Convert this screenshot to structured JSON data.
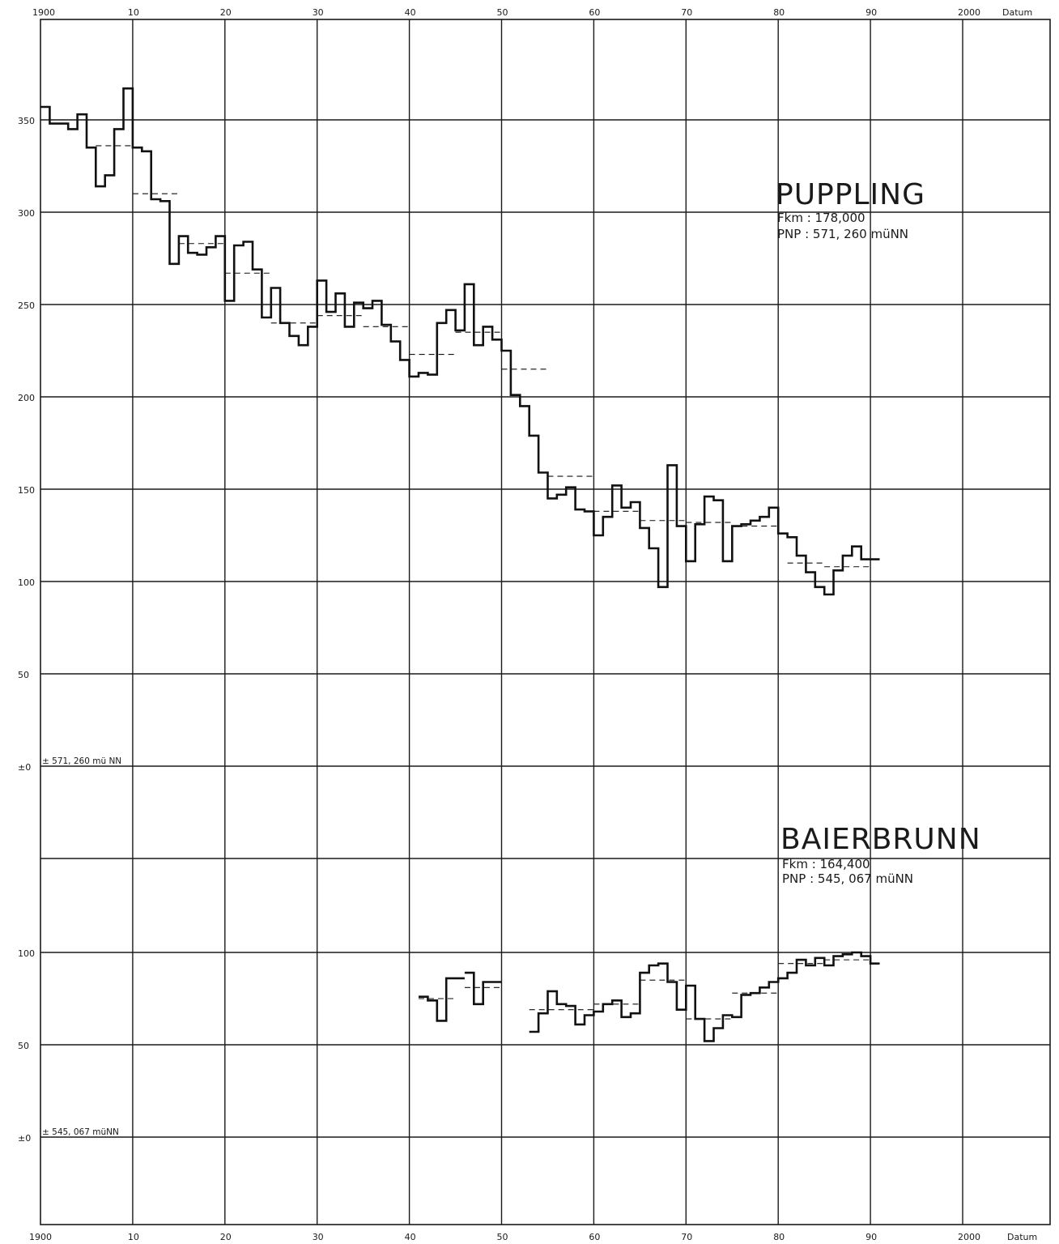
{
  "chart_data": [
    {
      "type": "line",
      "title": "PUPPLING",
      "info": [
        "Fkm : 178,000",
        "PNP : 571, 260 müNN"
      ],
      "reference_label": "± 571, 260 mü NN",
      "x_ticks": [
        "1900",
        "10",
        "20",
        "30",
        "40",
        "50",
        "60",
        "70",
        "80",
        "90",
        "2000"
      ],
      "x_unit": "Datum",
      "y_ticks": [
        "350",
        "300",
        "250",
        "200",
        "150",
        "100",
        "50",
        "±0"
      ],
      "xlim": [
        1900,
        2000
      ],
      "ylim": [
        0,
        350
      ],
      "grid": true,
      "step_series": {
        "x": [
          1900,
          1902,
          1903,
          1904,
          1905,
          1906,
          1907,
          1908,
          1909,
          1910,
          1911,
          1912,
          1913,
          1914,
          1915,
          1916,
          1917,
          1918,
          1919,
          1920,
          1921,
          1922,
          1923,
          1924,
          1925,
          1926,
          1927,
          1928,
          1929,
          1930,
          1931,
          1932,
          1933,
          1934,
          1935,
          1936,
          1937,
          1938,
          1939,
          1940,
          1941,
          1942,
          1943,
          1944,
          1945,
          1946,
          1947,
          1948,
          1949,
          1950,
          1951,
          1952,
          1953,
          1954,
          1955,
          1956,
          1957,
          1958,
          1959,
          1960,
          1961,
          1962,
          1963,
          1964,
          1965,
          1966,
          1967,
          1968,
          1969,
          1970,
          1971,
          1972,
          1973,
          1974,
          1975,
          1976,
          1977,
          1978,
          1979,
          1980,
          1981,
          1982,
          1983,
          1984,
          1985,
          1986,
          1987,
          1988,
          1989,
          1990
        ],
        "y": [
          357,
          348,
          345,
          353,
          335,
          314,
          320,
          345,
          367,
          335,
          333,
          307,
          306,
          272,
          287,
          278,
          277,
          281,
          287,
          252,
          282,
          284,
          269,
          243,
          259,
          240,
          233,
          228,
          238,
          263,
          246,
          256,
          238,
          251,
          248,
          252,
          239,
          230,
          220,
          211,
          213,
          212,
          240,
          247,
          236,
          261,
          228,
          238,
          231,
          225,
          201,
          195,
          179,
          159,
          145,
          147,
          151,
          139,
          138,
          125,
          135,
          152,
          140,
          143,
          129,
          118,
          97,
          163,
          130,
          111,
          131,
          146,
          144,
          111,
          130,
          131,
          133,
          135,
          140,
          126,
          124,
          114,
          105,
          97,
          93,
          106,
          114,
          119,
          112,
          112
        ]
      },
      "period_means": [
        {
          "x": [
            1900,
            1905
          ],
          "y": 350
        },
        {
          "x": [
            1906,
            1910
          ],
          "y": 336
        },
        {
          "x": [
            1910,
            1915
          ],
          "y": 310
        },
        {
          "x": [
            1915,
            1920
          ],
          "y": 283
        },
        {
          "x": [
            1920,
            1925
          ],
          "y": 267
        },
        {
          "x": [
            1925,
            1930
          ],
          "y": 240
        },
        {
          "x": [
            1930,
            1935
          ],
          "y": 244
        },
        {
          "x": [
            1935,
            1940
          ],
          "y": 238
        },
        {
          "x": [
            1940,
            1945
          ],
          "y": 223
        },
        {
          "x": [
            1945,
            1950
          ],
          "y": 235
        },
        {
          "x": [
            1950,
            1955
          ],
          "y": 215
        },
        {
          "x": [
            1955,
            1960
          ],
          "y": 157
        },
        {
          "x": [
            1960,
            1965
          ],
          "y": 138
        },
        {
          "x": [
            1965,
            1970
          ],
          "y": 133
        },
        {
          "x": [
            1970,
            1975
          ],
          "y": 132
        },
        {
          "x": [
            1975,
            1980
          ],
          "y": 130
        },
        {
          "x": [
            1981,
            1985
          ],
          "y": 110
        },
        {
          "x": [
            1985,
            1990
          ],
          "y": 108
        }
      ]
    },
    {
      "type": "line",
      "title": "BAIERBRUNN",
      "info": [
        "Fkm : 164,400",
        "PNP : 545, 067 müNN"
      ],
      "reference_label": "± 545, 067 müNN",
      "x_ticks": [
        "1900",
        "10",
        "20",
        "30",
        "40",
        "50",
        "60",
        "70",
        "80",
        "90",
        "2000"
      ],
      "x_unit": "Datum",
      "y_ticks": [
        "100",
        "50",
        "±0"
      ],
      "xlim": [
        1900,
        2000
      ],
      "ylim": [
        0,
        100
      ],
      "grid": true,
      "step_series": [
        {
          "x": [
            1941,
            1942,
            1943,
            1944,
            1945
          ],
          "y": [
            76,
            74,
            63,
            86,
            86
          ]
        },
        {
          "x": [
            1946,
            1947,
            1948,
            1949
          ],
          "y": [
            89,
            72,
            84,
            84
          ]
        },
        {
          "x": [
            1953,
            1954,
            1955,
            1956,
            1957,
            1958,
            1959,
            1960,
            1961,
            1962,
            1963,
            1964,
            1965,
            1966,
            1967,
            1968,
            1969,
            1970,
            1971,
            1972,
            1973,
            1974,
            1975,
            1976,
            1977,
            1978,
            1979,
            1980,
            1981,
            1982,
            1983,
            1984,
            1985,
            1986,
            1987,
            1988,
            1989,
            1990
          ],
          "y": [
            57,
            67,
            79,
            72,
            71,
            61,
            66,
            68,
            72,
            74,
            65,
            67,
            89,
            93,
            94,
            84,
            69,
            82,
            64,
            52,
            59,
            66,
            65,
            77,
            78,
            81,
            84,
            86,
            89,
            96,
            93,
            97,
            93,
            98,
            99,
            100,
            98,
            94
          ]
        }
      ],
      "period_means": [
        {
          "x": [
            1941,
            1945
          ],
          "y": 75
        },
        {
          "x": [
            1946,
            1950
          ],
          "y": 81
        },
        {
          "x": [
            1953,
            1960
          ],
          "y": 69
        },
        {
          "x": [
            1960,
            1965
          ],
          "y": 72
        },
        {
          "x": [
            1965,
            1970
          ],
          "y": 85
        },
        {
          "x": [
            1970,
            1975
          ],
          "y": 64
        },
        {
          "x": [
            1975,
            1980
          ],
          "y": 78
        },
        {
          "x": [
            1980,
            1985
          ],
          "y": 94
        },
        {
          "x": [
            1985,
            1990
          ],
          "y": 96
        }
      ]
    }
  ]
}
